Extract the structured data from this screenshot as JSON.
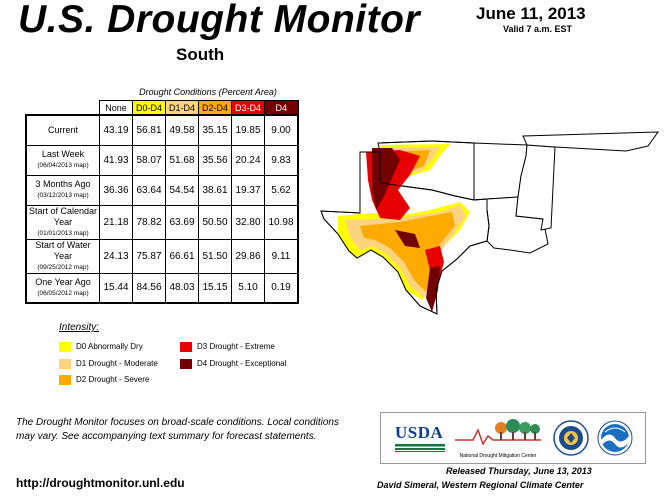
{
  "header": {
    "title": "U.S. Drought Monitor",
    "date": "June 11, 2013",
    "valid": "Valid 7 a.m. EST",
    "region": "South"
  },
  "table": {
    "caption": "Drought Conditions (Percent Area)",
    "columns": [
      "None",
      "D0-D4",
      "D1-D4",
      "D2-D4",
      "D3-D4",
      "D4"
    ],
    "column_colors": [
      "#ffffff",
      "#ffff00",
      "#fcd37f",
      "#ffaa00",
      "#e60000",
      "#730000"
    ],
    "column_text_colors": [
      "#000000",
      "#000000",
      "#000000",
      "#000000",
      "#ffffff",
      "#ffffff"
    ],
    "rows": [
      {
        "label": "Current",
        "sub": "",
        "values": [
          "43.19",
          "56.81",
          "49.58",
          "35.15",
          "19.85",
          "9.00"
        ]
      },
      {
        "label": "Last Week",
        "sub": "(06/04/2013 map)",
        "values": [
          "41.93",
          "58.07",
          "51.68",
          "35.56",
          "20.24",
          "9.83"
        ]
      },
      {
        "label": "3 Months Ago",
        "sub": "(03/12/2013 map)",
        "values": [
          "36.36",
          "63.64",
          "54.54",
          "38.61",
          "19.37",
          "5.62"
        ]
      },
      {
        "label": "Start of Calendar Year",
        "sub": "(01/01/2013 map)",
        "values": [
          "21.18",
          "78.82",
          "63.69",
          "50.50",
          "32.80",
          "10.98"
        ]
      },
      {
        "label": "Start of Water Year",
        "sub": "(09/25/2012 map)",
        "values": [
          "24.13",
          "75.87",
          "66.61",
          "51.50",
          "29.86",
          "9.11"
        ]
      },
      {
        "label": "One Year Ago",
        "sub": "(06/05/2012 map)",
        "values": [
          "15.44",
          "84.56",
          "48.03",
          "15.15",
          "5.10",
          "0.19"
        ]
      }
    ]
  },
  "legend": {
    "title": "Intensity:",
    "items": [
      {
        "label": "D0 Abnormally Dry",
        "color": "#ffff00"
      },
      {
        "label": "D1 Drought - Moderate",
        "color": "#fcd37f"
      },
      {
        "label": "D2 Drought - Severe",
        "color": "#ffaa00"
      },
      {
        "label": "D3 Drought - Extreme",
        "color": "#e60000"
      },
      {
        "label": "D4 Drought - Exceptional",
        "color": "#730000"
      }
    ]
  },
  "footer": {
    "note": "The Drought Monitor focuses on broad-scale conditions. Local conditions may vary. See accompanying text summary for forecast statements.",
    "url": "http://droughtmonitor.unl.edu",
    "released": "Released Thursday, June 13, 2013",
    "author": "David Simeral, Western Regional Climate Center"
  },
  "logos": {
    "usda": "USDA",
    "ndmc": "National Drought Mitigation Center"
  }
}
